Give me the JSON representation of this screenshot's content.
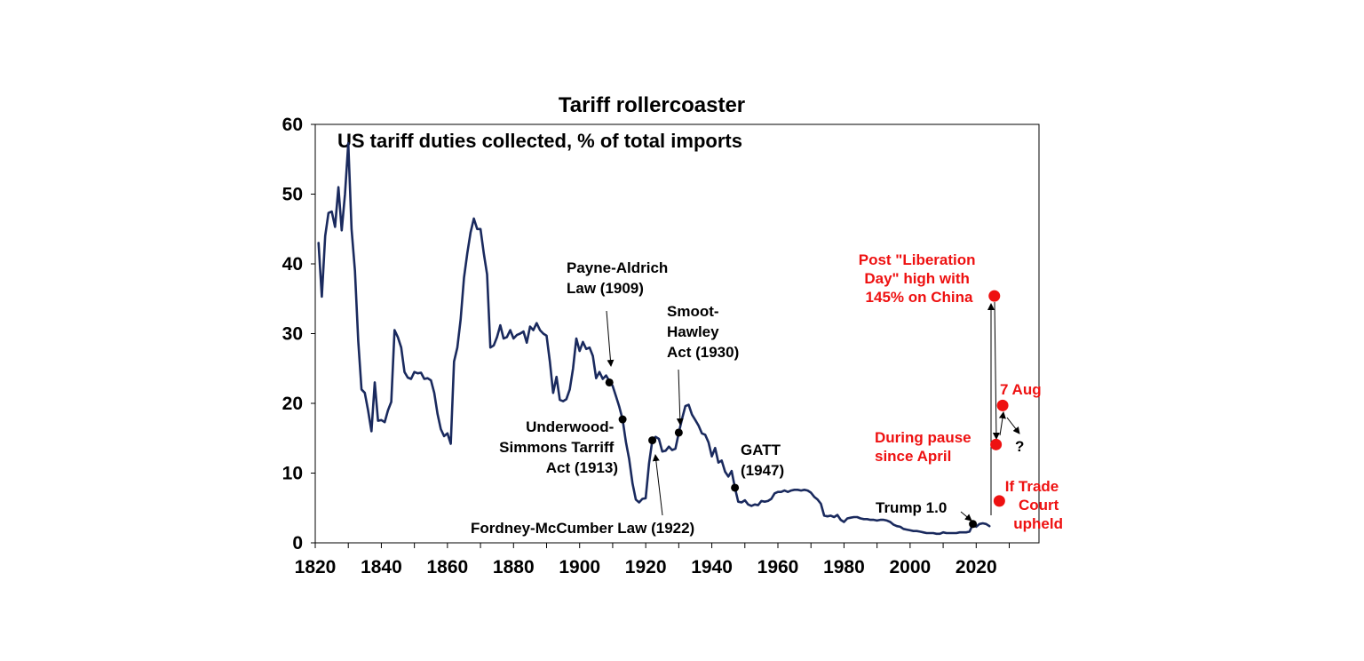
{
  "chart_data": {
    "type": "line",
    "title": "Tariff rollercoaster",
    "subtitle": "US tariff duties collected, % of total imports",
    "xlabel": "",
    "ylabel": "",
    "xlim": [
      1820,
      2039
    ],
    "ylim": [
      0,
      60
    ],
    "x_ticks": [
      1820,
      1840,
      1860,
      1880,
      1900,
      1920,
      1940,
      1960,
      1980,
      2000,
      2020
    ],
    "y_ticks": [
      0,
      10,
      20,
      30,
      40,
      50,
      60
    ],
    "grid": false,
    "colors": {
      "line": "#1a2a5e",
      "markers": "#000000",
      "scenario": "#ee1111",
      "annotation_red": "#ee1111"
    },
    "series": [
      {
        "points": [
          [
            1821,
            43
          ],
          [
            1822,
            35.3
          ],
          [
            1823,
            44
          ],
          [
            1824,
            47.3
          ],
          [
            1825,
            47.5
          ],
          [
            1826,
            45.3
          ],
          [
            1827,
            51
          ],
          [
            1828,
            44.8
          ],
          [
            1829,
            50
          ],
          [
            1830,
            57.3
          ],
          [
            1831,
            45
          ],
          [
            1832,
            39
          ],
          [
            1833,
            29
          ],
          [
            1834,
            22
          ],
          [
            1835,
            21.5
          ],
          [
            1836,
            19
          ],
          [
            1837,
            16
          ],
          [
            1838,
            23
          ],
          [
            1839,
            17.5
          ],
          [
            1840,
            17.6
          ],
          [
            1841,
            17.3
          ],
          [
            1842,
            19
          ],
          [
            1843,
            20.2
          ],
          [
            1844,
            30.5
          ],
          [
            1845,
            29.5
          ],
          [
            1846,
            28
          ],
          [
            1847,
            24.5
          ],
          [
            1848,
            23.7
          ],
          [
            1849,
            23.5
          ],
          [
            1850,
            24.5
          ],
          [
            1851,
            24.3
          ],
          [
            1852,
            24.4
          ],
          [
            1853,
            23.5
          ],
          [
            1854,
            23.6
          ],
          [
            1855,
            23.3
          ],
          [
            1856,
            21.5
          ],
          [
            1857,
            18.5
          ],
          [
            1858,
            16.3
          ],
          [
            1859,
            15.3
          ],
          [
            1860,
            15.7
          ],
          [
            1861,
            14.2
          ],
          [
            1862,
            26
          ],
          [
            1863,
            28
          ],
          [
            1864,
            32
          ],
          [
            1865,
            38
          ],
          [
            1866,
            41.5
          ],
          [
            1867,
            44.5
          ],
          [
            1868,
            46.5
          ],
          [
            1869,
            45
          ],
          [
            1870,
            45
          ],
          [
            1871,
            41.5
          ],
          [
            1872,
            38.5
          ],
          [
            1873,
            28
          ],
          [
            1874,
            28.3
          ],
          [
            1875,
            29.5
          ],
          [
            1876,
            31.2
          ],
          [
            1877,
            29.3
          ],
          [
            1878,
            29.5
          ],
          [
            1879,
            30.5
          ],
          [
            1880,
            29.3
          ],
          [
            1881,
            29.8
          ],
          [
            1882,
            30
          ],
          [
            1883,
            30.3
          ],
          [
            1884,
            28.7
          ],
          [
            1885,
            31
          ],
          [
            1886,
            30.5
          ],
          [
            1887,
            31.5
          ],
          [
            1888,
            30.5
          ],
          [
            1889,
            30
          ],
          [
            1890,
            29.7
          ],
          [
            1891,
            26
          ],
          [
            1892,
            21.5
          ],
          [
            1893,
            23.8
          ],
          [
            1894,
            20.5
          ],
          [
            1895,
            20.3
          ],
          [
            1896,
            20.6
          ],
          [
            1897,
            22
          ],
          [
            1898,
            25
          ],
          [
            1899,
            29.3
          ],
          [
            1900,
            27.5
          ],
          [
            1901,
            28.8
          ],
          [
            1902,
            27.8
          ],
          [
            1903,
            28
          ],
          [
            1904,
            26.8
          ],
          [
            1905,
            23.6
          ],
          [
            1906,
            24.5
          ],
          [
            1907,
            23.5
          ],
          [
            1908,
            24
          ],
          [
            1909,
            23.2
          ],
          [
            1910,
            22.5
          ],
          [
            1911,
            21
          ],
          [
            1912,
            19.5
          ],
          [
            1913,
            17.7
          ],
          [
            1914,
            14.5
          ],
          [
            1915,
            12
          ],
          [
            1916,
            8.5
          ],
          [
            1917,
            6.2
          ],
          [
            1918,
            5.8
          ],
          [
            1919,
            6.3
          ],
          [
            1920,
            6.4
          ],
          [
            1921,
            11.4
          ],
          [
            1922,
            14.7
          ],
          [
            1923,
            15.2
          ],
          [
            1924,
            14.9
          ],
          [
            1925,
            13.1
          ],
          [
            1926,
            13.2
          ],
          [
            1927,
            13.8
          ],
          [
            1928,
            13.3
          ],
          [
            1929,
            13.5
          ],
          [
            1930,
            15.8
          ],
          [
            1931,
            17.8
          ],
          [
            1932,
            19.6
          ],
          [
            1933,
            19.8
          ],
          [
            1934,
            18.4
          ],
          [
            1935,
            17.6
          ],
          [
            1936,
            16.8
          ],
          [
            1937,
            15.7
          ],
          [
            1938,
            15.5
          ],
          [
            1939,
            14.4
          ],
          [
            1940,
            12.4
          ],
          [
            1941,
            13.6
          ],
          [
            1942,
            11.5
          ],
          [
            1943,
            11.8
          ],
          [
            1944,
            10.2
          ],
          [
            1945,
            9.5
          ],
          [
            1946,
            10.3
          ],
          [
            1947,
            7.9
          ],
          [
            1948,
            5.9
          ],
          [
            1949,
            5.8
          ],
          [
            1950,
            6.1
          ],
          [
            1951,
            5.5
          ],
          [
            1952,
            5.3
          ],
          [
            1953,
            5.5
          ],
          [
            1954,
            5.4
          ],
          [
            1955,
            6
          ],
          [
            1956,
            5.9
          ],
          [
            1957,
            6
          ],
          [
            1958,
            6.3
          ],
          [
            1959,
            7.1
          ],
          [
            1960,
            7.3
          ],
          [
            1961,
            7.3
          ],
          [
            1962,
            7.5
          ],
          [
            1963,
            7.3
          ],
          [
            1964,
            7.5
          ],
          [
            1965,
            7.6
          ],
          [
            1966,
            7.6
          ],
          [
            1967,
            7.5
          ],
          [
            1968,
            7.6
          ],
          [
            1969,
            7.5
          ],
          [
            1970,
            7.2
          ],
          [
            1971,
            6.6
          ],
          [
            1972,
            6.2
          ],
          [
            1973,
            5.6
          ],
          [
            1974,
            3.9
          ],
          [
            1975,
            3.8
          ],
          [
            1976,
            3.9
          ],
          [
            1977,
            3.7
          ],
          [
            1978,
            4
          ],
          [
            1979,
            3.3
          ],
          [
            1980,
            3
          ],
          [
            1981,
            3.5
          ],
          [
            1982,
            3.6
          ],
          [
            1983,
            3.7
          ],
          [
            1984,
            3.7
          ],
          [
            1985,
            3.5
          ],
          [
            1986,
            3.4
          ],
          [
            1987,
            3.4
          ],
          [
            1988,
            3.3
          ],
          [
            1989,
            3.3
          ],
          [
            1990,
            3.2
          ],
          [
            1991,
            3.3
          ],
          [
            1992,
            3.3
          ],
          [
            1993,
            3.2
          ],
          [
            1994,
            3
          ],
          [
            1995,
            2.6
          ],
          [
            1996,
            2.4
          ],
          [
            1997,
            2.3
          ],
          [
            1998,
            2
          ],
          [
            1999,
            1.9
          ],
          [
            2000,
            1.8
          ],
          [
            2001,
            1.7
          ],
          [
            2002,
            1.7
          ],
          [
            2003,
            1.6
          ],
          [
            2004,
            1.5
          ],
          [
            2005,
            1.4
          ],
          [
            2006,
            1.4
          ],
          [
            2007,
            1.4
          ],
          [
            2008,
            1.3
          ],
          [
            2009,
            1.3
          ],
          [
            2010,
            1.5
          ],
          [
            2011,
            1.4
          ],
          [
            2012,
            1.4
          ],
          [
            2013,
            1.4
          ],
          [
            2014,
            1.4
          ],
          [
            2015,
            1.5
          ],
          [
            2016,
            1.5
          ],
          [
            2017,
            1.5
          ],
          [
            2018,
            1.6
          ],
          [
            2019,
            2.7
          ],
          [
            2020,
            2.3
          ],
          [
            2021,
            2.7
          ],
          [
            2022,
            2.8
          ],
          [
            2023,
            2.7
          ],
          [
            2024,
            2.4
          ]
        ]
      }
    ],
    "event_markers": [
      {
        "label": "Payne-Aldrich Law (1909)",
        "x": 1909,
        "y": 23
      },
      {
        "label": "Underwood-Simmons Tarriff Act (1913)",
        "x": 1913,
        "y": 17.7
      },
      {
        "label": "Fordney-McCumber Law (1922)",
        "x": 1922,
        "y": 14.7
      },
      {
        "label": "Smoot-Hawley Act (1930)",
        "x": 1930,
        "y": 15.8
      },
      {
        "label": "GATT (1947)",
        "x": 1947,
        "y": 7.9
      },
      {
        "label": "Trump 1.0",
        "x": 2019,
        "y": 2.7
      }
    ],
    "scenario_points": [
      {
        "label": "Post \"Liberation Day\" high with 145% on China",
        "x": 2025.5,
        "y": 35.4
      },
      {
        "label": "During pause since April",
        "x": 2026,
        "y": 14.1
      },
      {
        "label": "7 Aug",
        "x": 2028,
        "y": 19.7
      },
      {
        "label": "If Trade Court upheld",
        "x": 2027,
        "y": 6
      }
    ]
  },
  "annotations": {
    "payne_aldrich": [
      "Payne-Aldrich",
      "Law (1909)"
    ],
    "smoot_hawley": [
      "Smoot-",
      "Hawley",
      "Act (1930)"
    ],
    "underwood": [
      "Underwood-",
      "Simmons Tarriff",
      "Act (1913)"
    ],
    "fordney": "Fordney-McCumber Law (1922)",
    "gatt": [
      "GATT",
      "(1947)"
    ],
    "trump": "Trump 1.0",
    "liberation_day": [
      "Post \"Liberation",
      "Day\" high with",
      "145% on China"
    ],
    "aug7": "7 Aug",
    "pause": [
      "During pause",
      "since April"
    ],
    "question": "?",
    "trade_court": [
      "If Trade",
      "Court",
      "upheld"
    ]
  }
}
